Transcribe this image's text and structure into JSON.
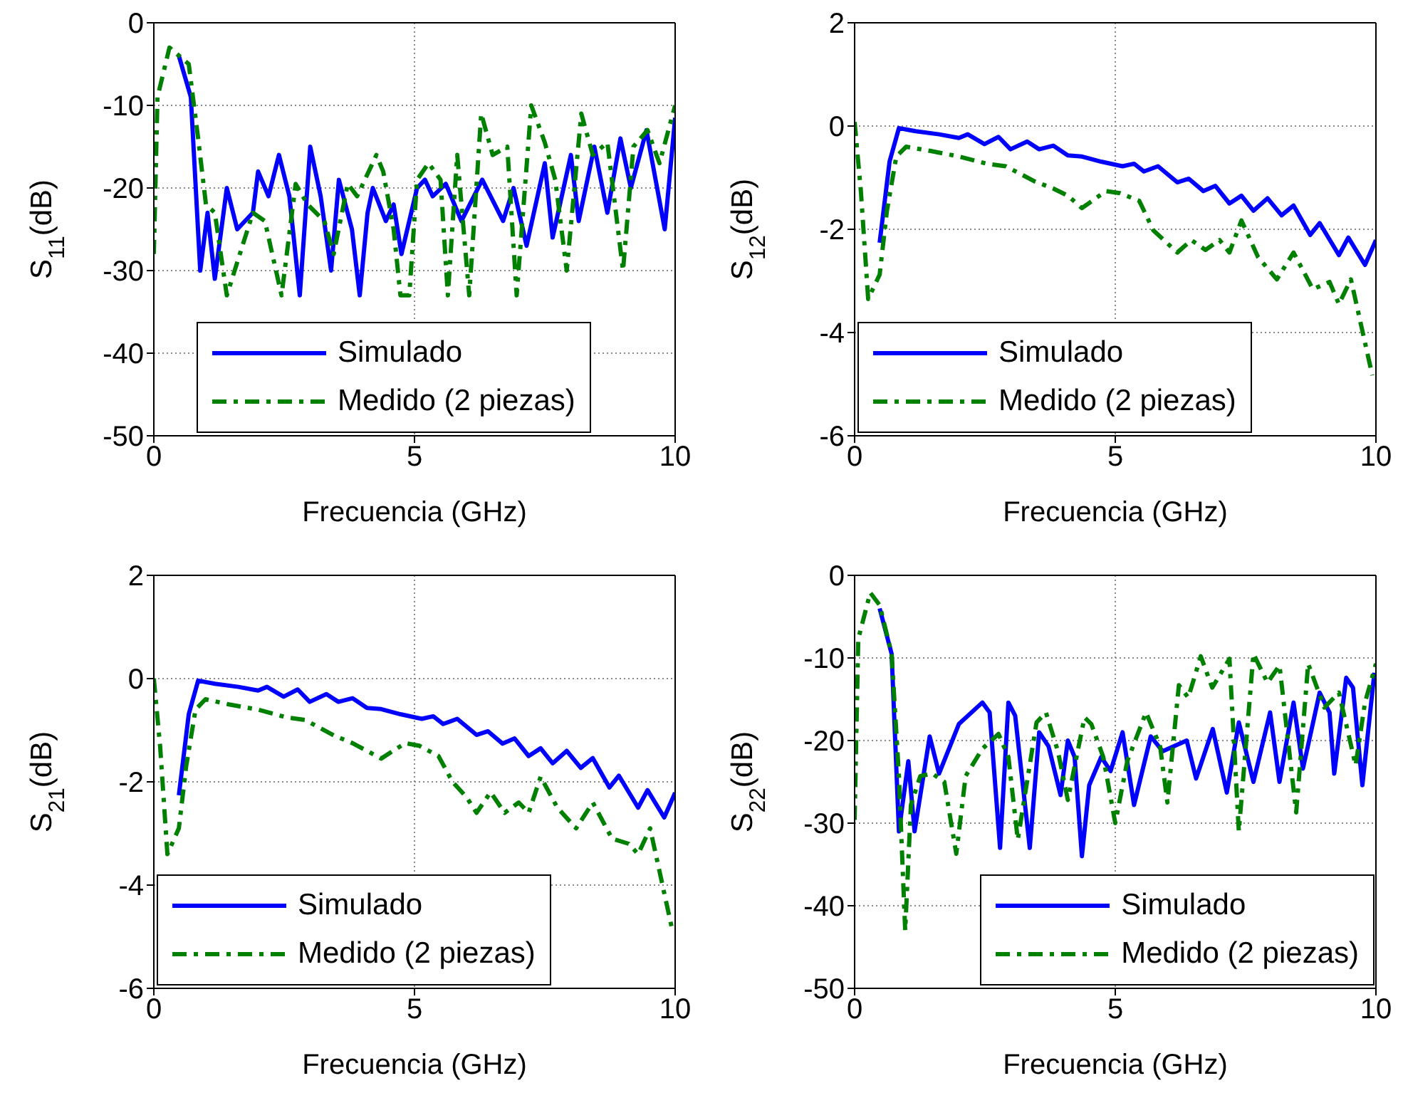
{
  "chart_data": [
    {
      "type": "line",
      "ylabel": "S$_{11}$(dB)",
      "xlabel": "Frecuencia (GHz)",
      "xlim": [
        0,
        10
      ],
      "xticks": [
        0,
        5,
        10
      ],
      "ylim": [
        -50,
        0
      ],
      "yticks": [
        -50,
        -40,
        -30,
        -20,
        -10,
        0
      ],
      "grid": true,
      "legend": "bottom",
      "series": [
        {
          "name": "Simulado",
          "color": "#0000ff",
          "line_style": "solid",
          "x": [
            0.48,
            0.71,
            0.89,
            1.03,
            1.17,
            1.4,
            1.6,
            1.9,
            2.0,
            2.2,
            2.4,
            2.6,
            2.8,
            3.0,
            3.2,
            3.4,
            3.55,
            3.8,
            3.95,
            4.1,
            4.2,
            4.45,
            4.6,
            4.75,
            5.05,
            5.2,
            5.35,
            5.6,
            5.9,
            6.3,
            6.7,
            6.9,
            7.15,
            7.5,
            7.65,
            8.0,
            8.15,
            8.45,
            8.7,
            8.95,
            9.15,
            9.45,
            9.8,
            10
          ],
          "values": [
            -4,
            -9,
            -30,
            -23,
            -31,
            -20,
            -25,
            -23,
            -18,
            -21,
            -16,
            -21,
            -33,
            -15,
            -21,
            -30,
            -19,
            -25,
            -33,
            -23,
            -20,
            -24,
            -22,
            -28,
            -20,
            -19,
            -21,
            -19.5,
            -24,
            -19,
            -24,
            -20,
            -27,
            -17,
            -26,
            -16,
            -24,
            -15,
            -23,
            -14,
            -20,
            -13,
            -25,
            -11.5
          ]
        },
        {
          "name": "Medido (2 piezas)",
          "color": "#008000",
          "line_style": "dashed",
          "x": [
            0,
            0.07,
            0.3,
            0.67,
            0.85,
            1.0,
            1.17,
            1.4,
            1.9,
            2.13,
            2.45,
            2.72,
            2.95,
            3.27,
            3.45,
            3.72,
            3.9,
            4.27,
            4.4,
            4.6,
            4.73,
            4.9,
            5.05,
            5.27,
            5.5,
            5.64,
            5.82,
            6.05,
            6.28,
            6.5,
            6.78,
            6.96,
            7.24,
            7.5,
            7.7,
            7.92,
            8.2,
            8.42,
            8.7,
            9.0,
            9.2,
            9.47,
            9.7,
            10
          ],
          "values": [
            -28,
            -9,
            -3,
            -5,
            -14,
            -22,
            -23,
            -33,
            -23,
            -24,
            -33,
            -19.5,
            -22,
            -24,
            -28,
            -19.5,
            -21,
            -16,
            -18,
            -25,
            -33,
            -33,
            -19,
            -17,
            -19,
            -33,
            -16,
            -33,
            -11,
            -16,
            -15,
            -33,
            -10,
            -14.5,
            -19,
            -30,
            -11,
            -16,
            -14.5,
            -30,
            -15,
            -13,
            -17,
            -10
          ]
        }
      ]
    },
    {
      "type": "line",
      "ylabel": "S$_{12}$(dB)",
      "xlabel": "Frecuencia (GHz)",
      "xlim": [
        0,
        10
      ],
      "xticks": [
        0,
        5,
        10
      ],
      "ylim": [
        -6,
        2
      ],
      "yticks": [
        -6,
        -4,
        -2,
        0,
        2
      ],
      "grid": true,
      "legend": "bottom left",
      "series": [
        {
          "name": "Simulado",
          "color": "#0000ff",
          "line_style": "solid",
          "x": [
            0.48,
            0.67,
            0.85,
            1.17,
            1.62,
            2.0,
            2.17,
            2.49,
            2.76,
            2.99,
            3.31,
            3.54,
            3.81,
            4.09,
            4.36,
            4.73,
            5.14,
            5.36,
            5.55,
            5.82,
            6.19,
            6.41,
            6.69,
            6.92,
            7.19,
            7.42,
            7.65,
            7.92,
            8.19,
            8.42,
            8.74,
            8.92,
            9.29,
            9.47,
            9.79,
            10
          ],
          "values": [
            -2.26,
            -0.69,
            -0.04,
            -0.1,
            -0.16,
            -0.23,
            -0.16,
            -0.35,
            -0.21,
            -0.45,
            -0.3,
            -0.45,
            -0.38,
            -0.57,
            -0.59,
            -0.69,
            -0.78,
            -0.73,
            -0.88,
            -0.78,
            -1.09,
            -1.02,
            -1.26,
            -1.16,
            -1.5,
            -1.35,
            -1.64,
            -1.4,
            -1.73,
            -1.54,
            -2.11,
            -1.88,
            -2.5,
            -2.16,
            -2.69,
            -2.21
          ]
        },
        {
          "name": "Medido (2 piezas)",
          "color": "#008000",
          "line_style": "dashed",
          "x": [
            0,
            0.12,
            0.26,
            0.48,
            0.62,
            0.8,
            0.99,
            1.44,
            2.0,
            2.54,
            2.9,
            3.45,
            3.81,
            4.09,
            4.36,
            4.82,
            5.09,
            5.46,
            5.73,
            6.19,
            6.46,
            6.73,
            7.0,
            7.19,
            7.42,
            7.74,
            8.1,
            8.42,
            8.79,
            9.11,
            9.29,
            9.52,
            9.93
          ],
          "values": [
            0.08,
            -1.26,
            -3.35,
            -2.88,
            -1.64,
            -0.59,
            -0.4,
            -0.48,
            -0.59,
            -0.73,
            -0.78,
            -1.07,
            -1.21,
            -1.35,
            -1.59,
            -1.26,
            -1.3,
            -1.45,
            -2.02,
            -2.45,
            -2.21,
            -2.4,
            -2.21,
            -2.45,
            -1.83,
            -2.54,
            -2.97,
            -2.45,
            -3.16,
            -3.02,
            -3.45,
            -2.97,
            -4.83
          ]
        }
      ]
    },
    {
      "type": "line",
      "ylabel": "S$_{21}$(dB)",
      "xlabel": "Frecuencia (GHz)",
      "xlim": [
        0,
        10
      ],
      "xticks": [
        0,
        5,
        10
      ],
      "ylim": [
        -6,
        2
      ],
      "yticks": [
        -6,
        -4,
        -2,
        0,
        2
      ],
      "grid": true,
      "legend": "bottom left",
      "series": [
        {
          "name": "Simulado",
          "color": "#0000ff",
          "line_style": "solid",
          "x": [
            0.48,
            0.67,
            0.85,
            1.17,
            1.62,
            2.0,
            2.17,
            2.49,
            2.76,
            2.99,
            3.31,
            3.54,
            3.81,
            4.09,
            4.36,
            4.73,
            5.14,
            5.36,
            5.55,
            5.82,
            6.19,
            6.41,
            6.69,
            6.92,
            7.19,
            7.42,
            7.65,
            7.92,
            8.19,
            8.42,
            8.74,
            8.92,
            9.29,
            9.47,
            9.79,
            10
          ],
          "values": [
            -2.26,
            -0.69,
            -0.04,
            -0.1,
            -0.16,
            -0.23,
            -0.16,
            -0.35,
            -0.21,
            -0.45,
            -0.3,
            -0.45,
            -0.38,
            -0.57,
            -0.59,
            -0.69,
            -0.78,
            -0.73,
            -0.88,
            -0.78,
            -1.09,
            -1.02,
            -1.26,
            -1.16,
            -1.5,
            -1.35,
            -1.64,
            -1.4,
            -1.73,
            -1.54,
            -2.11,
            -1.88,
            -2.5,
            -2.16,
            -2.69,
            -2.21
          ]
        },
        {
          "name": "Medido (2 piezas)",
          "color": "#008000",
          "line_style": "dashed",
          "x": [
            0,
            0.12,
            0.26,
            0.48,
            0.62,
            0.8,
            0.99,
            1.44,
            2.0,
            2.54,
            2.9,
            3.45,
            3.81,
            4.09,
            4.36,
            4.82,
            5.09,
            5.46,
            5.73,
            6.0,
            6.19,
            6.46,
            6.73,
            7.0,
            7.19,
            7.42,
            7.74,
            8.1,
            8.42,
            8.79,
            9.11,
            9.29,
            9.52,
            9.93
          ],
          "values": [
            0.0,
            -1.3,
            -3.4,
            -2.9,
            -1.7,
            -0.6,
            -0.4,
            -0.5,
            -0.6,
            -0.75,
            -0.8,
            -1.1,
            -1.25,
            -1.4,
            -1.55,
            -1.25,
            -1.3,
            -1.5,
            -2.0,
            -2.3,
            -2.6,
            -2.2,
            -2.6,
            -2.4,
            -2.6,
            -1.9,
            -2.5,
            -2.9,
            -2.4,
            -3.1,
            -3.2,
            -3.4,
            -2.9,
            -4.8
          ]
        }
      ]
    },
    {
      "type": "line",
      "ylabel": "S$_{22}$(dB)",
      "xlabel": "Frecuencia (GHz)",
      "xlim": [
        0,
        10
      ],
      "xticks": [
        0,
        5,
        10
      ],
      "ylim": [
        -50,
        0
      ],
      "yticks": [
        -50,
        -40,
        -30,
        -20,
        -10,
        0
      ],
      "grid": true,
      "legend": "bottom right",
      "series": [
        {
          "name": "Simulado",
          "color": "#0000ff",
          "line_style": "solid",
          "x": [
            0.48,
            0.71,
            0.85,
            1.03,
            1.15,
            1.44,
            1.62,
            2.0,
            2.45,
            2.59,
            2.79,
            2.95,
            3.08,
            3.36,
            3.54,
            3.72,
            3.95,
            4.09,
            4.22,
            4.36,
            4.5,
            4.73,
            4.91,
            5.14,
            5.36,
            5.68,
            5.91,
            6.37,
            6.55,
            6.87,
            7.14,
            7.37,
            7.65,
            7.97,
            8.15,
            8.42,
            8.6,
            8.92,
            9.11,
            9.2,
            9.43,
            9.56,
            9.74,
            9.97
          ],
          "values": [
            -4,
            -9.5,
            -31,
            -22.5,
            -31,
            -19.5,
            -24,
            -18,
            -15.4,
            -16.6,
            -33,
            -15.4,
            -17,
            -33,
            -19,
            -20.7,
            -26.6,
            -20,
            -22,
            -34,
            -25.4,
            -22,
            -23.7,
            -19,
            -27.8,
            -19.5,
            -21.3,
            -20,
            -24.6,
            -18.6,
            -26.3,
            -17.8,
            -25,
            -16.6,
            -25,
            -15.4,
            -23.4,
            -14.2,
            -16.6,
            -24,
            -12.4,
            -13.6,
            -25.4,
            -11.8
          ]
        },
        {
          "name": "Medido (2 piezas)",
          "color": "#008000",
          "line_style": "dashed",
          "x": [
            0,
            0.07,
            0.3,
            0.48,
            0.71,
            0.85,
            0.97,
            1.08,
            1.26,
            1.49,
            1.72,
            1.95,
            2.13,
            2.45,
            2.76,
            2.95,
            3.13,
            3.49,
            3.67,
            3.9,
            4.09,
            4.41,
            4.54,
            4.77,
            5.0,
            5.23,
            5.59,
            5.86,
            6.0,
            6.22,
            6.4,
            6.64,
            6.86,
            7.19,
            7.37,
            7.65,
            7.92,
            8.15,
            8.47,
            8.7,
            9.01,
            9.29,
            9.61,
            9.79,
            10
          ],
          "values": [
            -29.6,
            -7.7,
            -2.1,
            -3.6,
            -9.5,
            -24.3,
            -43,
            -27.8,
            -24.3,
            -24,
            -25,
            -33.7,
            -24.3,
            -21,
            -19.2,
            -22,
            -32,
            -17.8,
            -16.6,
            -21.3,
            -27.2,
            -17.2,
            -18,
            -22,
            -30,
            -22.5,
            -16.6,
            -20.7,
            -27.5,
            -13.3,
            -14.8,
            -9.8,
            -13.6,
            -10.1,
            -31,
            -9.5,
            -13,
            -10.9,
            -28.7,
            -10.7,
            -16,
            -14.2,
            -23,
            -15.4,
            -10.7
          ]
        }
      ]
    }
  ]
}
